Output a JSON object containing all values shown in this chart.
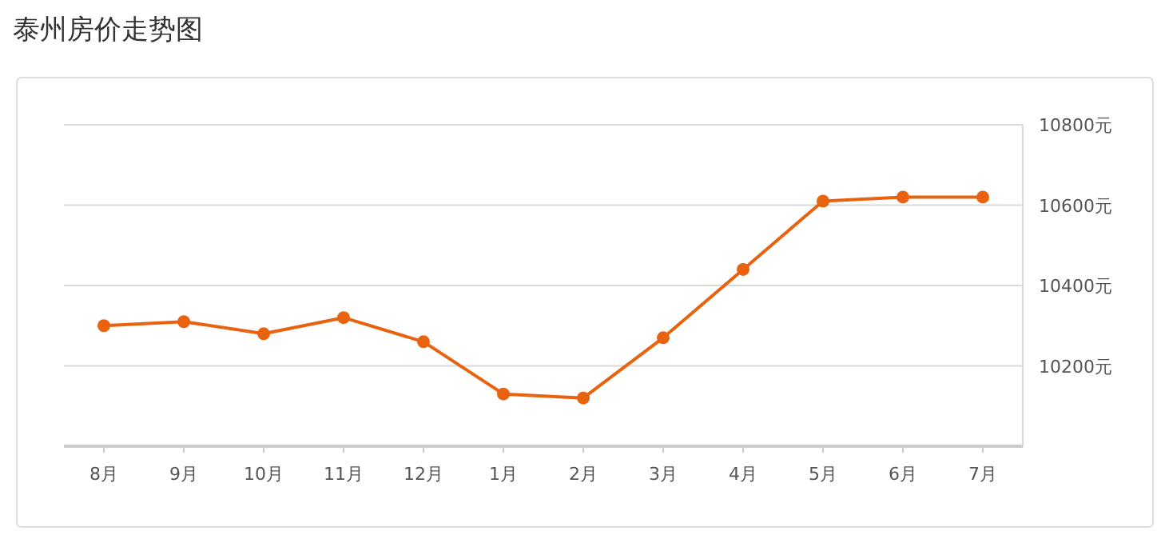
{
  "chart_data": {
    "type": "line",
    "title": "泰州房价走势图",
    "categories": [
      "8月",
      "9月",
      "10月",
      "11月",
      "12月",
      "1月",
      "2月",
      "3月",
      "4月",
      "5月",
      "6月",
      "7月"
    ],
    "series": [
      {
        "color": "#e8620f",
        "values": [
          10300,
          10310,
          10280,
          10320,
          10260,
          10130,
          10120,
          10270,
          10440,
          10610,
          10620,
          10620
        ]
      }
    ],
    "ylim": [
      10000,
      10800
    ],
    "yticks": [
      {
        "value": 10200,
        "label": "10200元"
      },
      {
        "value": 10400,
        "label": "10400元"
      },
      {
        "value": 10600,
        "label": "10600元"
      },
      {
        "value": 10800,
        "label": "10800元"
      }
    ],
    "grid": "y",
    "marker": "circle",
    "line_style": "solid"
  }
}
